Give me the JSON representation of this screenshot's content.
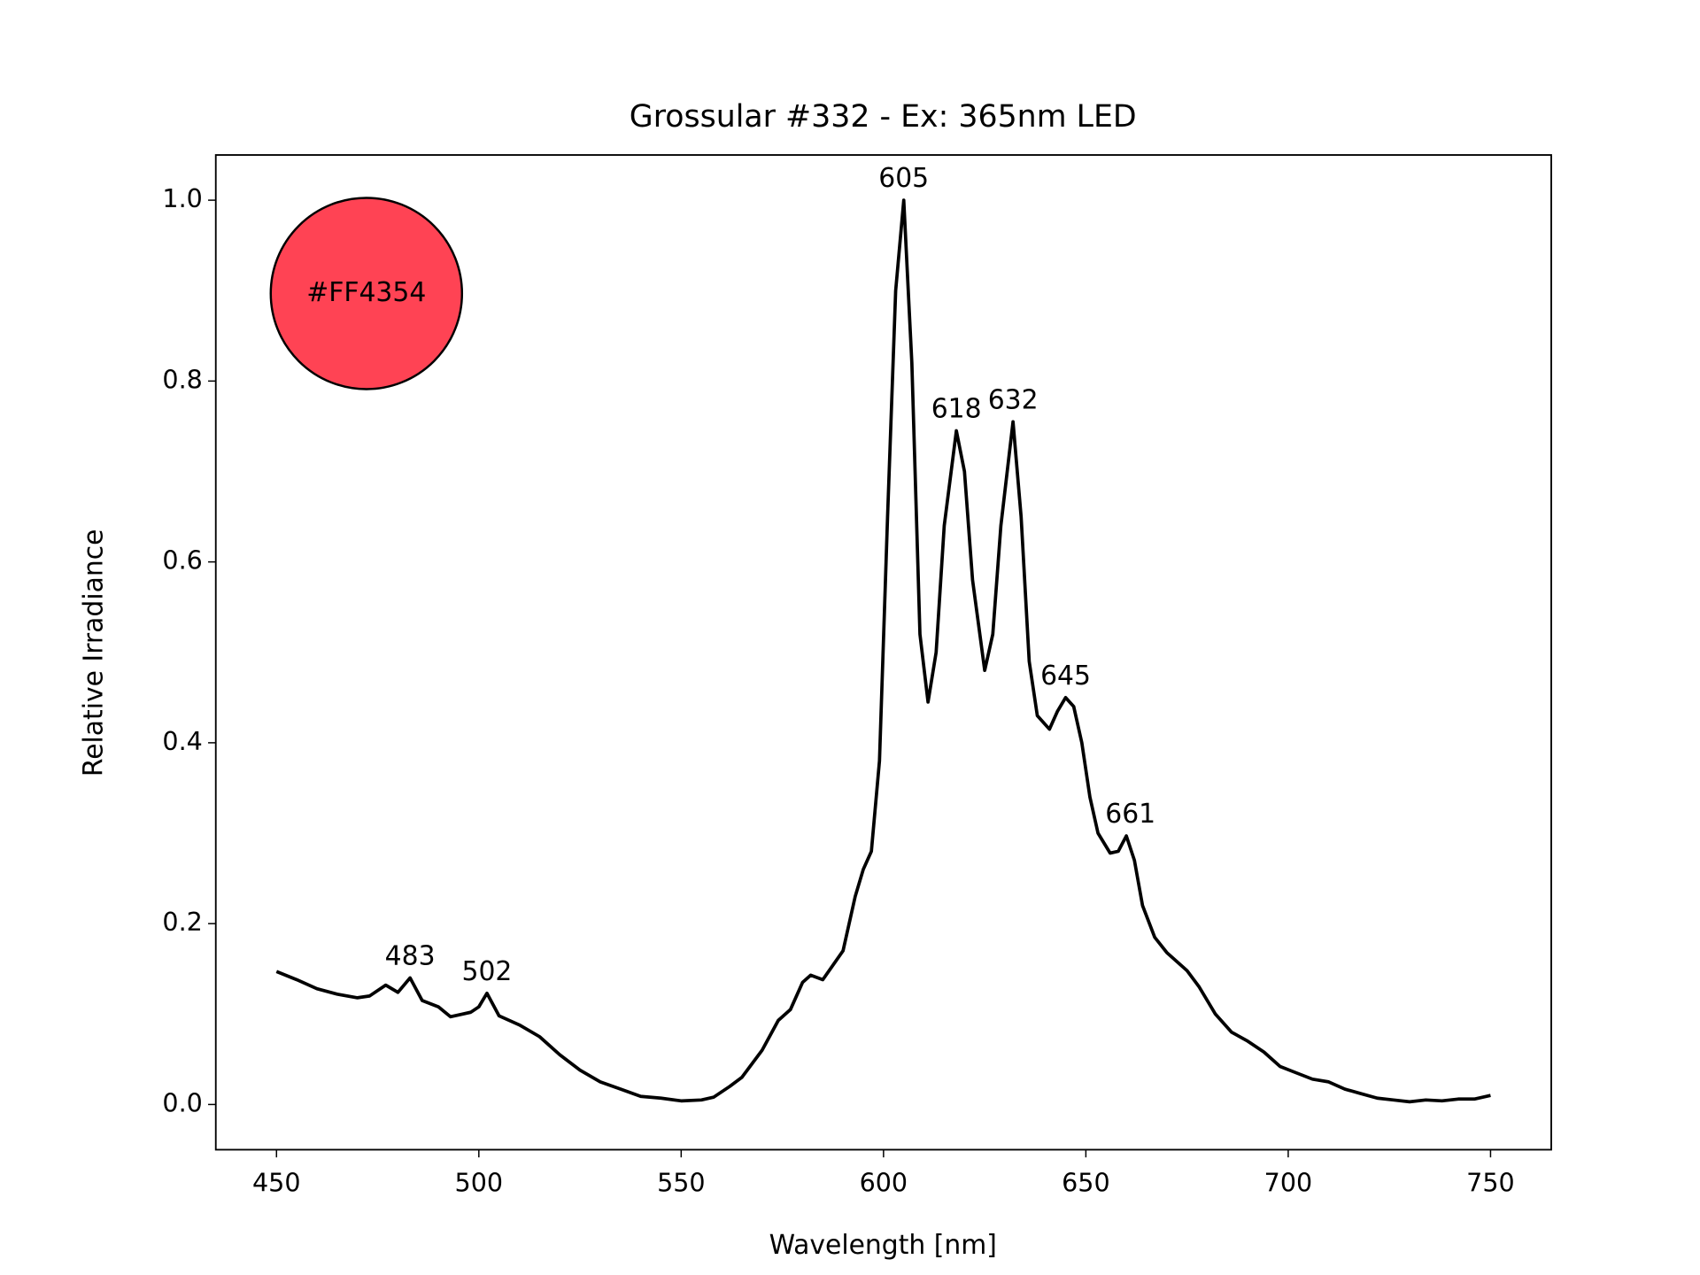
{
  "chart_data": {
    "type": "line",
    "title": "Grossular #332 - Ex: 365nm LED",
    "xlabel": "Wavelength [nm]",
    "ylabel": "Relative Irradiance",
    "xlim": [
      435,
      765
    ],
    "ylim": [
      -0.05,
      1.05
    ],
    "xticks": [
      450,
      500,
      550,
      600,
      650,
      700,
      750
    ],
    "yticks": [
      {
        "value": 0,
        "label": "0.0"
      },
      {
        "value": 0.2,
        "label": "0.2"
      },
      {
        "value": 0.4,
        "label": "0.4"
      },
      {
        "value": 0.6,
        "label": "0.6"
      },
      {
        "value": 0.8,
        "label": "0.8"
      },
      {
        "value": 1.0,
        "label": "1.0"
      }
    ],
    "color": "#000000",
    "swatch": {
      "color": "#FF4354",
      "label": "#FF4354"
    },
    "x": [
      450,
      455,
      460,
      465,
      470,
      473,
      477,
      480,
      483,
      486,
      490,
      493,
      498,
      500,
      502,
      505,
      510,
      515,
      520,
      525,
      530,
      535,
      540,
      545,
      550,
      555,
      558,
      562,
      565,
      570,
      574,
      577,
      580,
      582,
      585,
      590,
      593,
      595,
      597,
      599,
      601,
      603,
      605,
      607,
      609,
      611,
      613,
      615,
      618,
      620,
      622,
      625,
      627,
      629,
      632,
      634,
      636,
      638,
      641,
      643,
      645,
      647,
      649,
      651,
      653,
      656,
      658,
      660,
      662,
      664,
      667,
      670,
      675,
      678,
      682,
      686,
      690,
      694,
      698,
      702,
      706,
      710,
      714,
      718,
      722,
      726,
      730,
      734,
      738,
      742,
      746,
      750
    ],
    "values": [
      0.147,
      0.138,
      0.128,
      0.122,
      0.118,
      0.12,
      0.132,
      0.124,
      0.14,
      0.115,
      0.108,
      0.097,
      0.102,
      0.108,
      0.123,
      0.098,
      0.088,
      0.075,
      0.055,
      0.038,
      0.025,
      0.017,
      0.009,
      0.007,
      0.004,
      0.005,
      0.008,
      0.02,
      0.03,
      0.06,
      0.093,
      0.105,
      0.135,
      0.143,
      0.138,
      0.17,
      0.23,
      0.26,
      0.28,
      0.38,
      0.65,
      0.9,
      1.0,
      0.82,
      0.52,
      0.445,
      0.5,
      0.64,
      0.745,
      0.7,
      0.58,
      0.48,
      0.52,
      0.64,
      0.755,
      0.65,
      0.49,
      0.43,
      0.415,
      0.435,
      0.45,
      0.44,
      0.4,
      0.34,
      0.3,
      0.278,
      0.28,
      0.297,
      0.27,
      0.22,
      0.185,
      0.168,
      0.148,
      0.13,
      0.1,
      0.08,
      0.07,
      0.058,
      0.042,
      0.035,
      0.028,
      0.025,
      0.017,
      0.012,
      0.007,
      0.005,
      0.003,
      0.005,
      0.004,
      0.006,
      0.006,
      0.01
    ],
    "peaks": [
      {
        "x": 483,
        "y": 0.14
      },
      {
        "x": 502,
        "y": 0.123
      },
      {
        "x": 605,
        "y": 1.0
      },
      {
        "x": 618,
        "y": 0.745
      },
      {
        "x": 632,
        "y": 0.755
      },
      {
        "x": 645,
        "y": 0.45
      },
      {
        "x": 661,
        "y": 0.297
      }
    ]
  }
}
